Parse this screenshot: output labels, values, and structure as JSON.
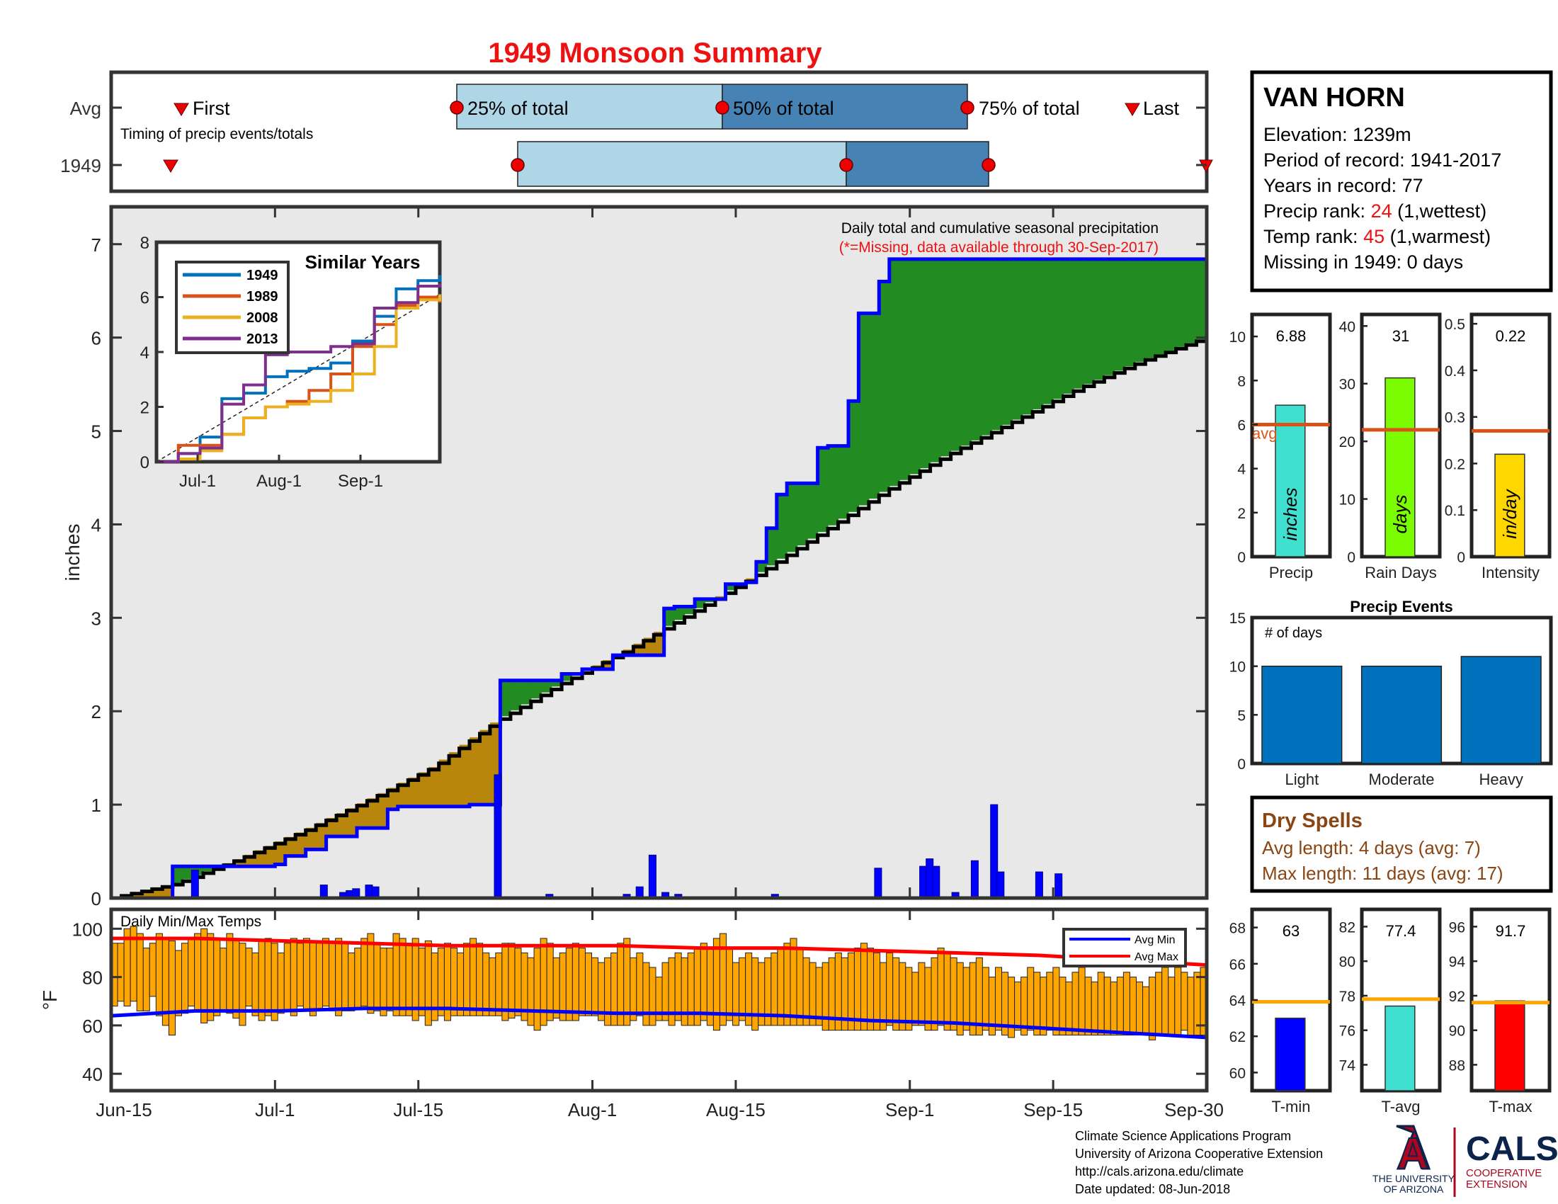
{
  "title": "1949 Monsoon Summary",
  "timing": {
    "avg_label": "Avg",
    "year_label": "1949",
    "subtitle": "Timing of precip events/totals",
    "first_label": "First",
    "last_label": "Last",
    "p25_label": "25% of total",
    "p50_label": "50% of total",
    "p75_label": "75% of total",
    "avg_dates": {
      "first": "Jun-21",
      "p25": "Jul-19",
      "p50": "Aug-10",
      "p75": "Sep-5",
      "last": "Sep-22"
    },
    "year_dates": {
      "first": "Jun-20",
      "p25": "Jul-25",
      "p50": "Aug-25",
      "p75": "Sep-8",
      "last": "Sep-30"
    }
  },
  "station": {
    "name": "VAN HORN",
    "elevation": "Elevation: 1239m",
    "period": "Period of record: 1941-2017",
    "years": "Years in record: 77",
    "precip_rank_label": "Precip rank: ",
    "precip_rank": "24",
    "precip_rank_note": " (1,wettest)",
    "temp_rank_label": "Temp rank: ",
    "temp_rank": "45",
    "temp_rank_note": " (1,warmest)",
    "missing": "Missing in 1949: 0 days"
  },
  "main_chart": {
    "ylabel": "inches",
    "note1": "Daily total and cumulative seasonal precipitation",
    "note2": "(*=Missing, data available through 30-Sep-2017)",
    "x_ticks": [
      "Jun-15",
      "Jul-1",
      "Jul-15",
      "Aug-1",
      "Aug-15",
      "Sep-1",
      "Sep-15",
      "Sep-30"
    ],
    "y_ticks": [
      "0",
      "1",
      "2",
      "3",
      "4",
      "5",
      "6",
      "7"
    ]
  },
  "inset": {
    "title": "Similar Years",
    "x_ticks": [
      "Jul-1",
      "Aug-1",
      "Sep-1"
    ],
    "y_ticks": [
      "0",
      "2",
      "4",
      "6",
      "8"
    ]
  },
  "bars": {
    "precip": {
      "label": "Precip",
      "value_text": "6.88",
      "unit": "inches",
      "y_ticks": [
        "0",
        "2",
        "4",
        "6",
        "8",
        "10"
      ],
      "avg_label": "avg"
    },
    "rain_days": {
      "label": "Rain Days",
      "value_text": "31",
      "unit": "days",
      "y_ticks": [
        "0",
        "10",
        "20",
        "30",
        "40"
      ]
    },
    "intensity": {
      "label": "Intensity",
      "value_text": "0.22",
      "unit": "in/day",
      "y_ticks": [
        "0",
        "0.1",
        "0.2",
        "0.3",
        "0.4",
        "0.5"
      ]
    }
  },
  "events": {
    "title": "Precip Events",
    "ylabel": "# of days",
    "categories": [
      "Light",
      "Moderate",
      "Heavy"
    ],
    "y_ticks": [
      "0",
      "5",
      "10",
      "15"
    ]
  },
  "dry_spells": {
    "title": "Dry Spells",
    "avg": "Avg length: 4 days (avg: 7)",
    "max": "Max length: 11 days (avg: 17)"
  },
  "temps": {
    "title": "Daily Min/Max Temps",
    "ylabel": "°F",
    "y_ticks": [
      "40",
      "60",
      "80",
      "100"
    ],
    "legend_min": "Avg Min",
    "legend_max": "Avg Max",
    "tmin": {
      "label": "T-min",
      "value_text": "63",
      "y_ticks": [
        "60",
        "62",
        "64",
        "66",
        "68"
      ]
    },
    "tavg": {
      "label": "T-avg",
      "value_text": "77.4",
      "y_ticks": [
        "74",
        "76",
        "78",
        "80",
        "82"
      ]
    },
    "tmax": {
      "label": "T-max",
      "value_text": "91.7",
      "y_ticks": [
        "88",
        "90",
        "92",
        "94",
        "96"
      ]
    }
  },
  "footer": {
    "line1": "Climate Science Applications Program",
    "line2": "University of Arizona Cooperative Extension",
    "line3": "http://cals.arizona.edu/climate",
    "line4": " Date updated: 08-Jun-2018",
    "ua_line1": "THE UNIVERSITY",
    "ua_line2": "OF ARIZONA",
    "cals": "CALS",
    "cals_line1": "COOPERATIVE",
    "cals_line2": "EXTENSION"
  },
  "colors": {
    "title": "#ee1111",
    "light_blue": "#aed6e6",
    "mid_blue": "#4682b4",
    "green": "#228b22",
    "brown": "#b8860b",
    "blue_line": "#0000ff",
    "avg_orange": "#d95319",
    "temp_bar": "#ffa500",
    "bar_blue": "#0072bd"
  },
  "chart_data": [
    {
      "type": "line",
      "title": "Daily total and cumulative seasonal precipitation",
      "ylabel": "inches",
      "ylim": [
        0,
        7.4
      ],
      "xlim": [
        "Jun-15",
        "Sep-30"
      ],
      "series": [
        {
          "name": "1949 cumulative",
          "x_day": [
            0,
            6,
            8,
            17,
            22,
            24,
            27,
            30,
            33,
            38,
            42,
            43,
            54,
            55,
            60,
            69,
            73,
            77,
            85,
            87,
            90,
            94,
            95,
            98,
            99,
            101,
            102,
            104,
            109,
            110,
            114,
            115,
            119,
            120,
            125,
            130,
            140,
            150,
            153,
            158,
            170
          ],
          "y": [
            0,
            0,
            0.34,
            0.34,
            0.34,
            0.36,
            0.45,
            0.52,
            0.66,
            0.75,
            0.95,
            0.98,
            0.98,
            1.0,
            2.33,
            2.4,
            2.45,
            2.6,
            3.1,
            3.12,
            3.2,
            3.24,
            3.36,
            3.38,
            3.6,
            3.96,
            4.32,
            4.44,
            4.82,
            4.84,
            5.32,
            6.26,
            6.6,
            6.84,
            6.84,
            6.84,
            6.84,
            6.84,
            6.84,
            6.84,
            6.88
          ]
        },
        {
          "name": "Average cumulative",
          "x_day": [
            0,
            10,
            20,
            30,
            40,
            50,
            60,
            70,
            80,
            90,
            100,
            110,
            120,
            130,
            140,
            150,
            160,
            170
          ],
          "y": [
            0,
            0.15,
            0.42,
            0.72,
            1.05,
            1.4,
            1.9,
            2.3,
            2.65,
            3.05,
            3.45,
            3.9,
            4.35,
            4.75,
            5.1,
            5.45,
            5.75,
            6.0
          ]
        }
      ],
      "daily_precip": {
        "x_day": [
          13,
          33,
          36,
          37,
          38,
          40,
          41,
          60,
          68,
          80,
          82,
          84,
          86,
          88,
          103,
          119,
          126,
          127,
          128,
          131,
          134,
          137,
          138,
          144,
          147
        ],
        "values": [
          0.3,
          0.14,
          0.06,
          0.08,
          0.1,
          0.14,
          0.12,
          1.32,
          0.04,
          0.04,
          0.12,
          0.46,
          0.06,
          0.04,
          0.04,
          0.32,
          0.34,
          0.42,
          0.34,
          0.06,
          0.4,
          1.0,
          0.28,
          0.28,
          0.26
        ]
      }
    },
    {
      "type": "line",
      "title": "Similar Years",
      "ylim": [
        0,
        8
      ],
      "series": [
        {
          "name": "1949",
          "y": [
            0,
            0.3,
            0.9,
            2.3,
            2.5,
            3.1,
            3.3,
            3.4,
            3.6,
            4.4,
            5.3,
            6.3,
            6.6,
            6.8
          ]
        },
        {
          "name": "1989",
          "y": [
            0,
            0.6,
            0.6,
            1.0,
            1.6,
            2.0,
            2.2,
            2.6,
            3.2,
            4.2,
            5.0,
            5.7,
            6.0,
            5.8
          ]
        },
        {
          "name": "2008",
          "y": [
            0,
            0.1,
            0.4,
            1.0,
            1.6,
            2.0,
            2.1,
            2.2,
            2.6,
            3.2,
            4.2,
            5.6,
            5.9,
            6.1
          ]
        },
        {
          "name": "2013",
          "y": [
            0,
            0.3,
            0.5,
            2.1,
            2.8,
            3.9,
            4.0,
            4.0,
            4.2,
            4.3,
            5.6,
            5.8,
            6.4,
            6.5
          ]
        }
      ]
    },
    {
      "type": "bar",
      "categories": [
        "Precip",
        "Rain Days",
        "Intensity"
      ],
      "values": [
        6.88,
        31,
        0.22
      ],
      "averages": [
        6.0,
        22,
        0.27
      ],
      "ylim": [
        [
          0,
          11
        ],
        [
          0,
          42
        ],
        [
          0,
          0.52
        ]
      ]
    },
    {
      "type": "bar",
      "title": "Precip Events",
      "ylabel": "# of days",
      "categories": [
        "Light",
        "Moderate",
        "Heavy"
      ],
      "values": [
        10,
        10,
        11
      ],
      "ylim": [
        0,
        15
      ]
    },
    {
      "type": "bar",
      "title": "Daily Min/Max Temps",
      "ylabel": "°F",
      "ylim": [
        33,
        108
      ],
      "series": [
        {
          "name": "Daily Min",
          "values": [
            68,
            70,
            68,
            70,
            66,
            66,
            72,
            64,
            60,
            56,
            64,
            65,
            68,
            66,
            61,
            62,
            64,
            66,
            65,
            63,
            60,
            68,
            64,
            62,
            64,
            62,
            65,
            66,
            64,
            68,
            66,
            64,
            66,
            68,
            66,
            64,
            66,
            66,
            67,
            68,
            65,
            66,
            64,
            66,
            64,
            64,
            64,
            62,
            64,
            60,
            62,
            64,
            62,
            64,
            64,
            64,
            64,
            64,
            64,
            64,
            64,
            62,
            63,
            64,
            62,
            60,
            58,
            60,
            62,
            63,
            62,
            62,
            62,
            64,
            64,
            64,
            62,
            60,
            60,
            60,
            60,
            62,
            64,
            60,
            60,
            62,
            62,
            60,
            62,
            60,
            60,
            60,
            62,
            60,
            58,
            60,
            62,
            60,
            62,
            60,
            58,
            60,
            60,
            60,
            60,
            60,
            60,
            60,
            60,
            60,
            60,
            58,
            58,
            58,
            58,
            58,
            58,
            58,
            58,
            58,
            58,
            60,
            58,
            58,
            58,
            60,
            60,
            58,
            58,
            60,
            58,
            58,
            56,
            58,
            56,
            56,
            58,
            56,
            58,
            56,
            55,
            58,
            56,
            58,
            56,
            56,
            58,
            56,
            56,
            56,
            56,
            56,
            56,
            56,
            56,
            56,
            56,
            56,
            56,
            56,
            56,
            56,
            54,
            56,
            56,
            56,
            56,
            58,
            56,
            56,
            56
          ]
        },
        {
          "name": "Daily Max",
          "values": [
            94,
            94,
            100,
            101,
            98,
            92,
            94,
            98,
            96,
            95,
            91,
            94,
            96,
            98,
            100,
            98,
            96,
            92,
            98,
            96,
            94,
            92,
            90,
            95,
            96,
            94,
            90,
            94,
            96,
            94,
            96,
            95,
            94,
            96,
            94,
            96,
            94,
            90,
            92,
            96,
            98,
            94,
            92,
            92,
            98,
            96,
            94,
            96,
            92,
            95,
            90,
            92,
            94,
            92,
            90,
            94,
            96,
            94,
            90,
            88,
            90,
            94,
            94,
            92,
            90,
            88,
            92,
            96,
            94,
            88,
            90,
            92,
            94,
            92,
            90,
            88,
            86,
            88,
            90,
            94,
            96,
            88,
            90,
            86,
            84,
            80,
            86,
            88,
            90,
            88,
            90,
            92,
            94,
            92,
            96,
            98,
            92,
            86,
            88,
            90,
            88,
            86,
            88,
            90,
            92,
            94,
            96,
            92,
            88,
            86,
            84,
            86,
            88,
            90,
            88,
            90,
            92,
            94,
            92,
            90,
            86,
            90,
            88,
            86,
            84,
            82,
            86,
            84,
            88,
            92,
            90,
            88,
            86,
            84,
            86,
            88,
            84,
            80,
            84,
            82,
            80,
            78,
            80,
            84,
            82,
            80,
            82,
            84,
            80,
            78,
            82,
            84,
            80,
            78,
            82,
            80,
            78,
            80,
            82,
            80,
            78,
            76,
            80,
            82,
            84,
            80,
            84,
            82,
            80,
            82,
            84
          ]
        },
        {
          "name": "Avg Min",
          "values": [
            64,
            66,
            66,
            67,
            67,
            66,
            65,
            65,
            64,
            62,
            61,
            59,
            57,
            55
          ]
        },
        {
          "name": "Avg Max",
          "values": [
            96,
            96,
            95,
            94,
            93,
            93,
            93,
            92,
            92,
            91,
            90,
            89,
            87,
            85
          ]
        }
      ]
    },
    {
      "type": "bar",
      "categories": [
        "T-min",
        "T-avg",
        "T-max"
      ],
      "values": [
        63,
        77.4,
        91.7
      ],
      "averages": [
        63.9,
        77.8,
        91.6
      ]
    }
  ]
}
